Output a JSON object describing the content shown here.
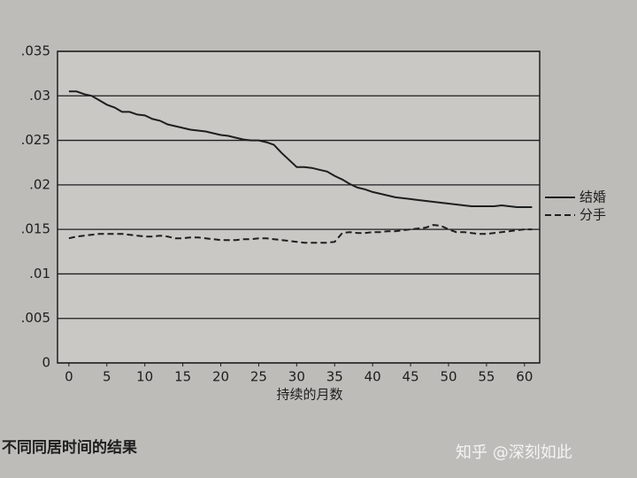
{
  "chart_data": {
    "type": "line",
    "x_label": "持续的月数",
    "caption": "不同同居时间的结果",
    "watermark": "知乎 @深刻如此",
    "x": [
      0,
      1,
      2,
      3,
      4,
      5,
      6,
      7,
      8,
      9,
      10,
      11,
      12,
      13,
      14,
      15,
      16,
      17,
      18,
      19,
      20,
      21,
      22,
      23,
      24,
      25,
      26,
      27,
      28,
      29,
      30,
      31,
      32,
      33,
      34,
      35,
      36,
      37,
      38,
      39,
      40,
      41,
      42,
      43,
      44,
      45,
      46,
      47,
      48,
      49,
      50,
      51,
      52,
      53,
      54,
      55,
      56,
      57,
      58,
      59,
      60,
      61
    ],
    "series": [
      {
        "name": "结婚",
        "color": "#1e1e1e",
        "style": "solid",
        "values": [
          0.0305,
          0.0305,
          0.0302,
          0.03,
          0.0295,
          0.029,
          0.0287,
          0.0282,
          0.0282,
          0.0279,
          0.0278,
          0.0274,
          0.0272,
          0.0268,
          0.0266,
          0.0264,
          0.0262,
          0.0261,
          0.026,
          0.0258,
          0.0256,
          0.0255,
          0.0253,
          0.0251,
          0.025,
          0.025,
          0.0248,
          0.0245,
          0.0236,
          0.0228,
          0.022,
          0.022,
          0.0219,
          0.0217,
          0.0215,
          0.021,
          0.0206,
          0.0201,
          0.0197,
          0.0195,
          0.0192,
          0.019,
          0.0188,
          0.0186,
          0.0185,
          0.0184,
          0.0183,
          0.0182,
          0.0181,
          0.018,
          0.0179,
          0.0178,
          0.0177,
          0.0176,
          0.0176,
          0.0176,
          0.0176,
          0.0177,
          0.0176,
          0.0175,
          0.0175,
          0.0175
        ]
      },
      {
        "name": "分手",
        "color": "#1e1e1e",
        "style": "dashed",
        "values": [
          0.014,
          0.0142,
          0.0143,
          0.0144,
          0.0145,
          0.0145,
          0.0145,
          0.0145,
          0.0144,
          0.0143,
          0.0142,
          0.0142,
          0.0143,
          0.0142,
          0.014,
          0.014,
          0.0141,
          0.0141,
          0.014,
          0.0139,
          0.0138,
          0.0138,
          0.0138,
          0.0139,
          0.0139,
          0.014,
          0.014,
          0.0139,
          0.0138,
          0.0137,
          0.0136,
          0.0135,
          0.0135,
          0.0135,
          0.0135,
          0.0136,
          0.0146,
          0.0147,
          0.0146,
          0.0146,
          0.0147,
          0.0147,
          0.0148,
          0.0148,
          0.0149,
          0.015,
          0.0151,
          0.0152,
          0.0155,
          0.0154,
          0.015,
          0.0147,
          0.0147,
          0.0146,
          0.0145,
          0.0145,
          0.0146,
          0.0147,
          0.0148,
          0.0149,
          0.015,
          0.015
        ]
      }
    ],
    "xlim": [
      -1.5,
      62
    ],
    "xticks": [
      0,
      5,
      10,
      15,
      20,
      25,
      30,
      35,
      40,
      45,
      50,
      55,
      60
    ],
    "ylim": [
      0,
      0.035
    ],
    "yticks": [
      0,
      {
        "value": 0.005,
        "label": ".005"
      },
      {
        "value": 0.01,
        "label": ".01"
      },
      {
        "value": 0.015,
        "label": ".015"
      },
      {
        "value": 0.02,
        "label": ".02"
      },
      {
        "value": 0.025,
        "label": ".025"
      },
      {
        "value": 0.03,
        "label": ".03"
      },
      {
        "value": 0.035,
        "label": ".035"
      }
    ],
    "grid": true,
    "legend": "right"
  }
}
